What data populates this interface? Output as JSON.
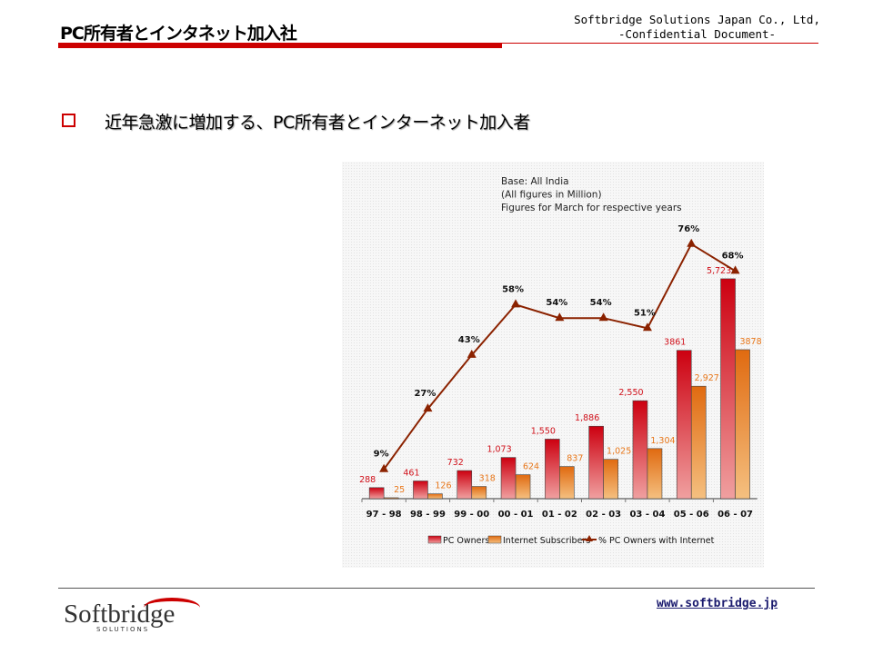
{
  "header": {
    "title": "PC所有者とインタネット加入社",
    "company": "Softbridge Solutions Japan Co., Ltd,",
    "confidential": "-Confidential Document-"
  },
  "headline": "近年急激に増加する、PC所有者とインターネット加入者",
  "footer": {
    "logo_name": "Softbridge",
    "logo_sub": "SOLUTIONS",
    "url": "www.softbridge.jp"
  },
  "colors": {
    "pc": "#d0101a",
    "internet": "#e8771a",
    "line": "#8b2200",
    "accent": "#cc0000"
  },
  "chart_data": {
    "type": "bar",
    "notes": [
      "Base: All India",
      "(All figures in Million)",
      "Figures for March for respective years"
    ],
    "categories": [
      "97 - 98",
      "98 - 99",
      "99 - 00",
      "00 - 01",
      "01 - 02",
      "02 - 03",
      "03 - 04",
      "05 - 06",
      "06 - 07"
    ],
    "series": [
      {
        "name": "PC Owners",
        "values": [
          288,
          461,
          732,
          1073,
          1550,
          1886,
          2550,
          3861,
          5723
        ],
        "labels": [
          "288",
          "461",
          "732",
          "1,073",
          "1,550",
          "1,886",
          "2,550",
          "3861",
          "5,723"
        ]
      },
      {
        "name": "Internet Subscribers",
        "values": [
          25,
          126,
          318,
          624,
          837,
          1025,
          1304,
          2927,
          3878
        ],
        "labels": [
          "25",
          "126",
          "318",
          "624",
          "837",
          "1,025",
          "1,304",
          "2,927",
          "3878"
        ]
      },
      {
        "name": "% PC Owners with Internet",
        "type": "line",
        "values": [
          9,
          27,
          43,
          58,
          54,
          54,
          51,
          76,
          68
        ],
        "labels": [
          "9%",
          "27%",
          "43%",
          "58%",
          "54%",
          "54%",
          "51%",
          "76%",
          "68%"
        ]
      }
    ],
    "legend": "bottom",
    "grid": false
  }
}
